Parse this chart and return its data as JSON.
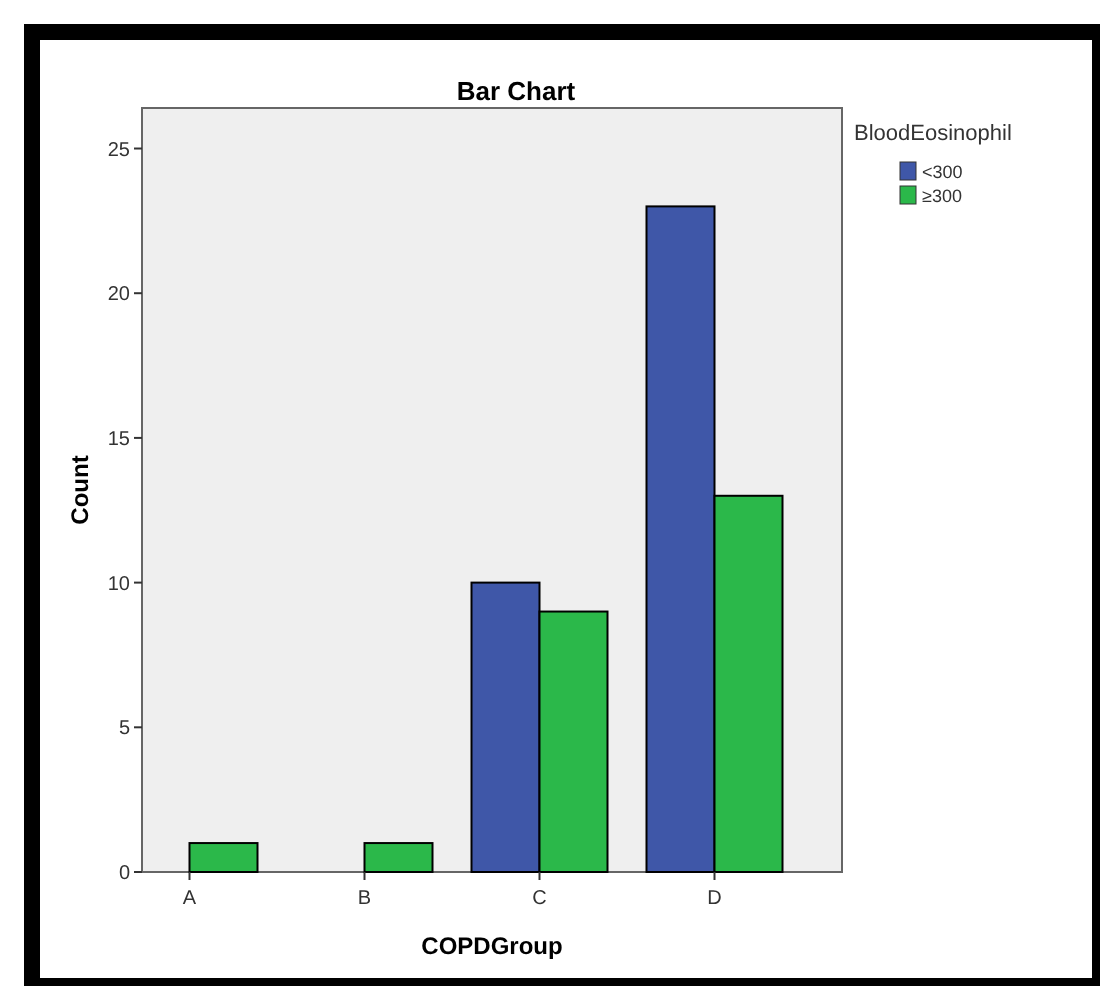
{
  "chart_data": {
    "type": "bar",
    "title": "Bar Chart",
    "xlabel": "COPDGroup",
    "ylabel": "Count",
    "legend_title": "BloodEosinophil",
    "categories": [
      "A",
      "B",
      "C",
      "D"
    ],
    "series": [
      {
        "name": "<300",
        "color": "#3f57a8",
        "values": [
          0,
          0,
          10,
          23
        ]
      },
      {
        "name": "≥300",
        "color": "#2bb84a",
        "values": [
          1,
          1,
          9,
          13
        ]
      }
    ],
    "ylim": [
      0,
      26.4
    ],
    "yticks": [
      0,
      5,
      10,
      15,
      20,
      25
    ],
    "grid": false,
    "legend": "top right"
  }
}
